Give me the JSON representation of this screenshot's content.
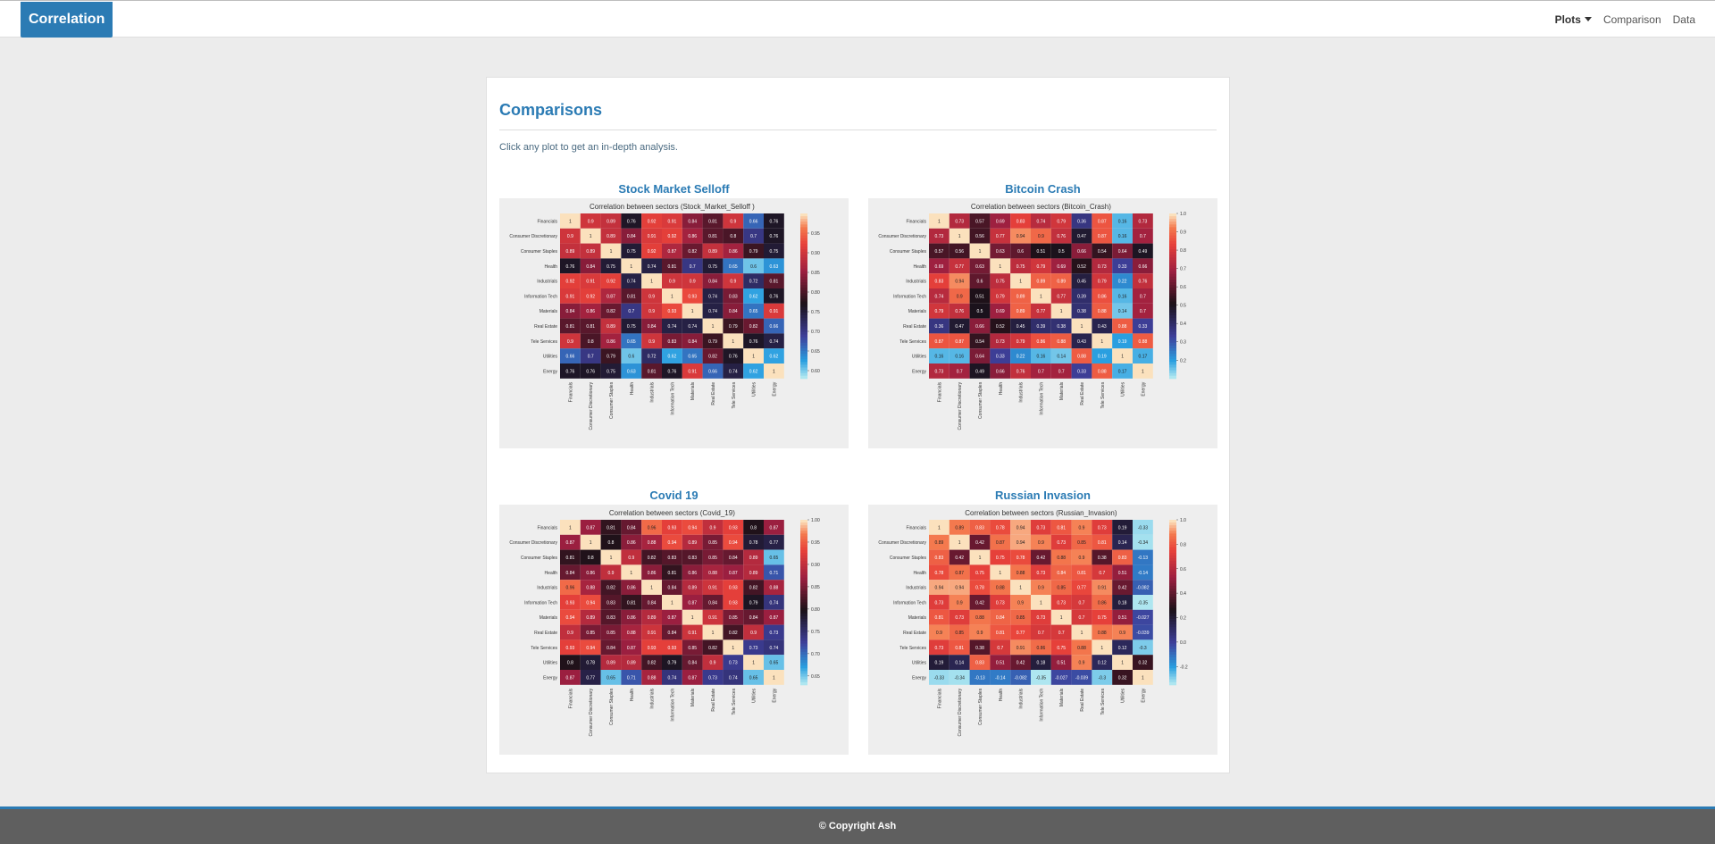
{
  "navbar": {
    "brand": "Correlation",
    "links": [
      {
        "label": "Plots",
        "dropdown": true,
        "active": true
      },
      {
        "label": "Comparison"
      },
      {
        "label": "Data"
      }
    ]
  },
  "page": {
    "title": "Comparisons",
    "intro": "Click any plot to get an in-depth analysis."
  },
  "footer": {
    "copyright": "© Copyright Ash"
  },
  "colors": {
    "accent": "#2b7bb4",
    "footer": "#5f5f5f"
  },
  "chart_data": [
    {
      "type": "heatmap",
      "card_title": "Stock Market Selloff",
      "title": "Correlation between sectors (Stock_Market_Selloff )",
      "labels": [
        "Financials",
        "Consumer Discretionary",
        "Consumer Staples",
        "Health",
        "Industrials",
        "Information Tech",
        "Materials",
        "Real Estate",
        "Tele Services",
        "Utilities",
        "Energy"
      ],
      "colorbar_ticks": [
        "0.95",
        "0.90",
        "0.85",
        "0.80",
        "0.75",
        "0.70",
        "0.65",
        "0.60"
      ],
      "vmin": 0.58,
      "vmax": 1.0,
      "matrix": [
        [
          1,
          0.9,
          0.89,
          0.76,
          0.92,
          0.91,
          0.84,
          0.81,
          0.9,
          0.66,
          0.76
        ],
        [
          0.9,
          1,
          0.89,
          0.84,
          0.91,
          0.92,
          0.86,
          0.81,
          0.8,
          0.7,
          0.76
        ],
        [
          0.89,
          0.89,
          1,
          0.75,
          0.92,
          0.87,
          0.82,
          0.89,
          0.86,
          0.79,
          0.75
        ],
        [
          0.76,
          0.84,
          0.75,
          1,
          0.74,
          0.81,
          0.7,
          0.75,
          0.65,
          0.6,
          0.63
        ],
        [
          0.92,
          0.91,
          0.92,
          0.74,
          1,
          0.9,
          0.9,
          0.84,
          0.9,
          0.72,
          0.81
        ],
        [
          0.91,
          0.92,
          0.87,
          0.81,
          0.9,
          1,
          0.93,
          0.74,
          0.83,
          0.62,
          0.76
        ],
        [
          0.84,
          0.86,
          0.82,
          0.7,
          0.9,
          0.93,
          1,
          0.74,
          0.84,
          0.65,
          0.91
        ],
        [
          0.81,
          0.81,
          0.89,
          0.75,
          0.84,
          0.74,
          0.74,
          1,
          0.79,
          0.82,
          0.66
        ],
        [
          0.9,
          0.8,
          0.86,
          0.65,
          0.9,
          0.83,
          0.84,
          0.79,
          1,
          0.76,
          0.74
        ],
        [
          0.66,
          0.7,
          0.79,
          0.6,
          0.72,
          0.62,
          0.65,
          0.82,
          0.76,
          1,
          0.62
        ],
        [
          0.76,
          0.76,
          0.75,
          0.63,
          0.81,
          0.76,
          0.91,
          0.66,
          0.74,
          0.62,
          1
        ]
      ]
    },
    {
      "type": "heatmap",
      "card_title": "Bitcoin Crash",
      "title": "Correlation between sectors (Bitcoin_Crash)",
      "labels": [
        "Financials",
        "Consumer Discretionary",
        "Consumer Staples",
        "Health",
        "Industrials",
        "Information Tech",
        "Materials",
        "Real Estate",
        "Tele Services",
        "Utilities",
        "Energy"
      ],
      "colorbar_ticks": [
        "1.0",
        "0.9",
        "0.8",
        "0.7",
        "0.6",
        "0.5",
        "0.4",
        "0.3",
        "0.2"
      ],
      "vmin": 0.1,
      "vmax": 1.0,
      "matrix": [
        [
          1,
          0.73,
          0.57,
          0.69,
          0.83,
          0.74,
          0.79,
          0.36,
          0.87,
          0.16,
          0.73
        ],
        [
          0.73,
          1,
          0.56,
          0.77,
          0.94,
          0.9,
          0.76,
          0.47,
          0.87,
          0.16,
          0.7
        ],
        [
          0.57,
          0.56,
          1,
          0.63,
          0.6,
          0.51,
          0.5,
          0.66,
          0.54,
          0.64,
          0.49
        ],
        [
          0.69,
          0.77,
          0.63,
          1,
          0.75,
          0.79,
          0.69,
          0.52,
          0.73,
          0.33,
          0.66
        ],
        [
          0.83,
          0.94,
          0.6,
          0.75,
          1,
          0.89,
          0.89,
          0.45,
          0.79,
          0.22,
          0.76
        ],
        [
          0.74,
          0.9,
          0.51,
          0.79,
          0.89,
          1,
          0.77,
          0.39,
          0.86,
          0.16,
          0.7
        ],
        [
          0.79,
          0.76,
          0.5,
          0.69,
          0.89,
          0.77,
          1,
          0.38,
          0.88,
          0.14,
          0.7
        ],
        [
          0.36,
          0.47,
          0.66,
          0.52,
          0.45,
          0.39,
          0.38,
          1,
          0.43,
          0.88,
          0.33
        ],
        [
          0.87,
          0.87,
          0.54,
          0.73,
          0.79,
          0.86,
          0.88,
          0.43,
          1,
          0.19,
          0.88
        ],
        [
          0.16,
          0.16,
          0.64,
          0.33,
          0.22,
          0.16,
          0.14,
          0.88,
          0.19,
          1,
          0.17
        ],
        [
          0.73,
          0.7,
          0.49,
          0.66,
          0.76,
          0.7,
          0.7,
          0.33,
          0.88,
          0.17,
          1
        ]
      ]
    },
    {
      "type": "heatmap",
      "card_title": "Covid 19",
      "title": "Correlation between sectors (Covid_19)",
      "labels": [
        "Financials",
        "Consumer Discretionary",
        "Consumer Staples",
        "Health",
        "Industrials",
        "Information Tech",
        "Materials",
        "Real Estate",
        "Tele Services",
        "Utilities",
        "Energy"
      ],
      "colorbar_ticks": [
        "1.00",
        "0.95",
        "0.90",
        "0.85",
        "0.80",
        "0.75",
        "0.70",
        "0.65"
      ],
      "vmin": 0.63,
      "vmax": 1.0,
      "matrix": [
        [
          1,
          0.87,
          0.81,
          0.84,
          0.96,
          0.93,
          0.94,
          0.9,
          0.93,
          0.8,
          0.87
        ],
        [
          0.87,
          1,
          0.8,
          0.86,
          0.88,
          0.94,
          0.89,
          0.85,
          0.94,
          0.78,
          0.77
        ],
        [
          0.81,
          0.8,
          1,
          0.9,
          0.82,
          0.83,
          0.83,
          0.85,
          0.84,
          0.89,
          0.65
        ],
        [
          0.84,
          0.86,
          0.9,
          1,
          0.86,
          0.81,
          0.86,
          0.88,
          0.87,
          0.89,
          0.71
        ],
        [
          0.96,
          0.88,
          0.82,
          0.86,
          1,
          0.84,
          0.89,
          0.91,
          0.93,
          0.82,
          0.88
        ],
        [
          0.93,
          0.94,
          0.83,
          0.81,
          0.84,
          1,
          0.87,
          0.84,
          0.93,
          0.79,
          0.74
        ],
        [
          0.94,
          0.89,
          0.83,
          0.86,
          0.89,
          0.87,
          1,
          0.91,
          0.85,
          0.84,
          0.87
        ],
        [
          0.9,
          0.85,
          0.85,
          0.88,
          0.91,
          0.84,
          0.91,
          1,
          0.82,
          0.9,
          0.73
        ],
        [
          0.93,
          0.94,
          0.84,
          0.87,
          0.93,
          0.93,
          0.85,
          0.82,
          1,
          0.73,
          0.74
        ],
        [
          0.8,
          0.78,
          0.89,
          0.89,
          0.82,
          0.79,
          0.84,
          0.9,
          0.73,
          1,
          0.65
        ],
        [
          0.87,
          0.77,
          0.65,
          0.71,
          0.88,
          0.74,
          0.87,
          0.73,
          0.74,
          0.65,
          1
        ]
      ]
    },
    {
      "type": "heatmap",
      "card_title": "Russian Invasion",
      "title": "Correlation between sectors (Russian_Invasion)",
      "labels": [
        "Financials",
        "Consumer Discretionary",
        "Consumer Staples",
        "Health",
        "Industrials",
        "Information Tech",
        "Materials",
        "Real Estate",
        "Tele Services",
        "Utilities",
        "Energy"
      ],
      "colorbar_ticks": [
        "1.0",
        "0.8",
        "0.6",
        "0.4",
        "0.2",
        "0.0",
        "-0.2"
      ],
      "vmin": -0.35,
      "vmax": 1.0,
      "matrix": [
        [
          1,
          0.89,
          0.83,
          0.78,
          0.94,
          0.73,
          0.81,
          0.9,
          0.73,
          0.19,
          -0.33
        ],
        [
          0.89,
          1,
          0.42,
          0.87,
          0.94,
          0.9,
          0.73,
          0.85,
          0.81,
          0.14,
          -0.34
        ],
        [
          0.83,
          0.42,
          1,
          0.75,
          0.78,
          0.42,
          0.88,
          0.9,
          0.38,
          0.83,
          -0.13
        ],
        [
          0.78,
          0.87,
          0.75,
          1,
          0.88,
          0.73,
          0.84,
          0.81,
          0.7,
          0.51,
          -0.14
        ],
        [
          0.94,
          0.94,
          0.78,
          0.88,
          1,
          0.9,
          0.85,
          0.77,
          0.91,
          0.42,
          -0.082
        ],
        [
          0.73,
          0.9,
          0.42,
          0.73,
          0.9,
          1,
          0.73,
          0.7,
          0.86,
          0.18,
          -0.35
        ],
        [
          0.81,
          0.73,
          0.88,
          0.84,
          0.85,
          0.73,
          1,
          0.7,
          0.75,
          0.51,
          -0.027
        ],
        [
          0.9,
          0.85,
          0.9,
          0.81,
          0.77,
          0.7,
          0.7,
          1,
          0.88,
          0.9,
          -0.039
        ],
        [
          0.73,
          0.81,
          0.38,
          0.7,
          0.91,
          0.86,
          0.75,
          0.88,
          1,
          0.12,
          -0.3
        ],
        [
          0.19,
          0.14,
          0.83,
          0.51,
          0.42,
          0.18,
          0.51,
          0.9,
          0.12,
          1,
          0.32
        ],
        [
          -0.33,
          -0.34,
          -0.13,
          -0.14,
          -0.082,
          -0.35,
          -0.027,
          -0.039,
          -0.3,
          0.32,
          1
        ]
      ]
    }
  ]
}
